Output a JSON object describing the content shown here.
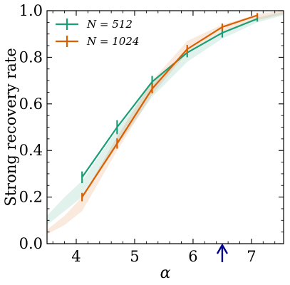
{
  "chart_data": {
    "type": "line",
    "title": "",
    "xlabel": "α",
    "ylabel": "Strong recovery rate",
    "xlim": [
      3.5,
      7.55
    ],
    "ylim": [
      0.0,
      1.0
    ],
    "xticks": [
      4,
      5,
      6,
      7
    ],
    "yticks": [
      0.0,
      0.2,
      0.4,
      0.6,
      0.8,
      1.0
    ],
    "ytick_labels": [
      "0.0",
      "0.2",
      "0.4",
      "0.6",
      "0.8",
      "1.0"
    ],
    "grid": false,
    "legend_position": "upper-left",
    "series": [
      {
        "name": "N = 512",
        "color": "#1b9e77",
        "x": [
          4.1,
          4.7,
          5.3,
          5.9,
          6.5,
          7.1
        ],
        "y": [
          0.285,
          0.5,
          0.695,
          0.82,
          0.905,
          0.965
        ],
        "err": [
          0.025,
          0.03,
          0.025,
          0.02,
          0.02,
          0.012
        ],
        "band": {
          "x": [
            3.5,
            3.8,
            4.1,
            4.7,
            5.3,
            5.9,
            6.5,
            7.1,
            7.55
          ],
          "lower": [
            0.08,
            0.14,
            0.2,
            0.42,
            0.63,
            0.78,
            0.88,
            0.95,
            0.98
          ],
          "upper": [
            0.12,
            0.2,
            0.27,
            0.49,
            0.69,
            0.82,
            0.91,
            0.97,
            0.995
          ]
        }
      },
      {
        "name": "N = 1024",
        "color": "#d95f02",
        "x": [
          4.1,
          4.7,
          5.3,
          5.9,
          6.5,
          7.1
        ],
        "y": [
          0.2,
          0.43,
          0.665,
          0.835,
          0.93,
          0.98
        ],
        "err": [
          0.018,
          0.022,
          0.02,
          0.018,
          0.015,
          0.01
        ],
        "band": {
          "x": [
            3.5,
            3.8,
            4.1,
            4.7,
            5.3,
            5.9,
            6.5,
            7.1,
            7.55
          ],
          "lower": [
            0.04,
            0.08,
            0.14,
            0.4,
            0.64,
            0.82,
            0.91,
            0.96,
            0.985
          ],
          "upper": [
            0.06,
            0.12,
            0.2,
            0.46,
            0.7,
            0.87,
            0.94,
            0.985,
            1.0
          ]
        }
      }
    ],
    "annotation": {
      "type": "arrow",
      "x": 6.5,
      "color": "#00008b",
      "direction": "up"
    }
  }
}
